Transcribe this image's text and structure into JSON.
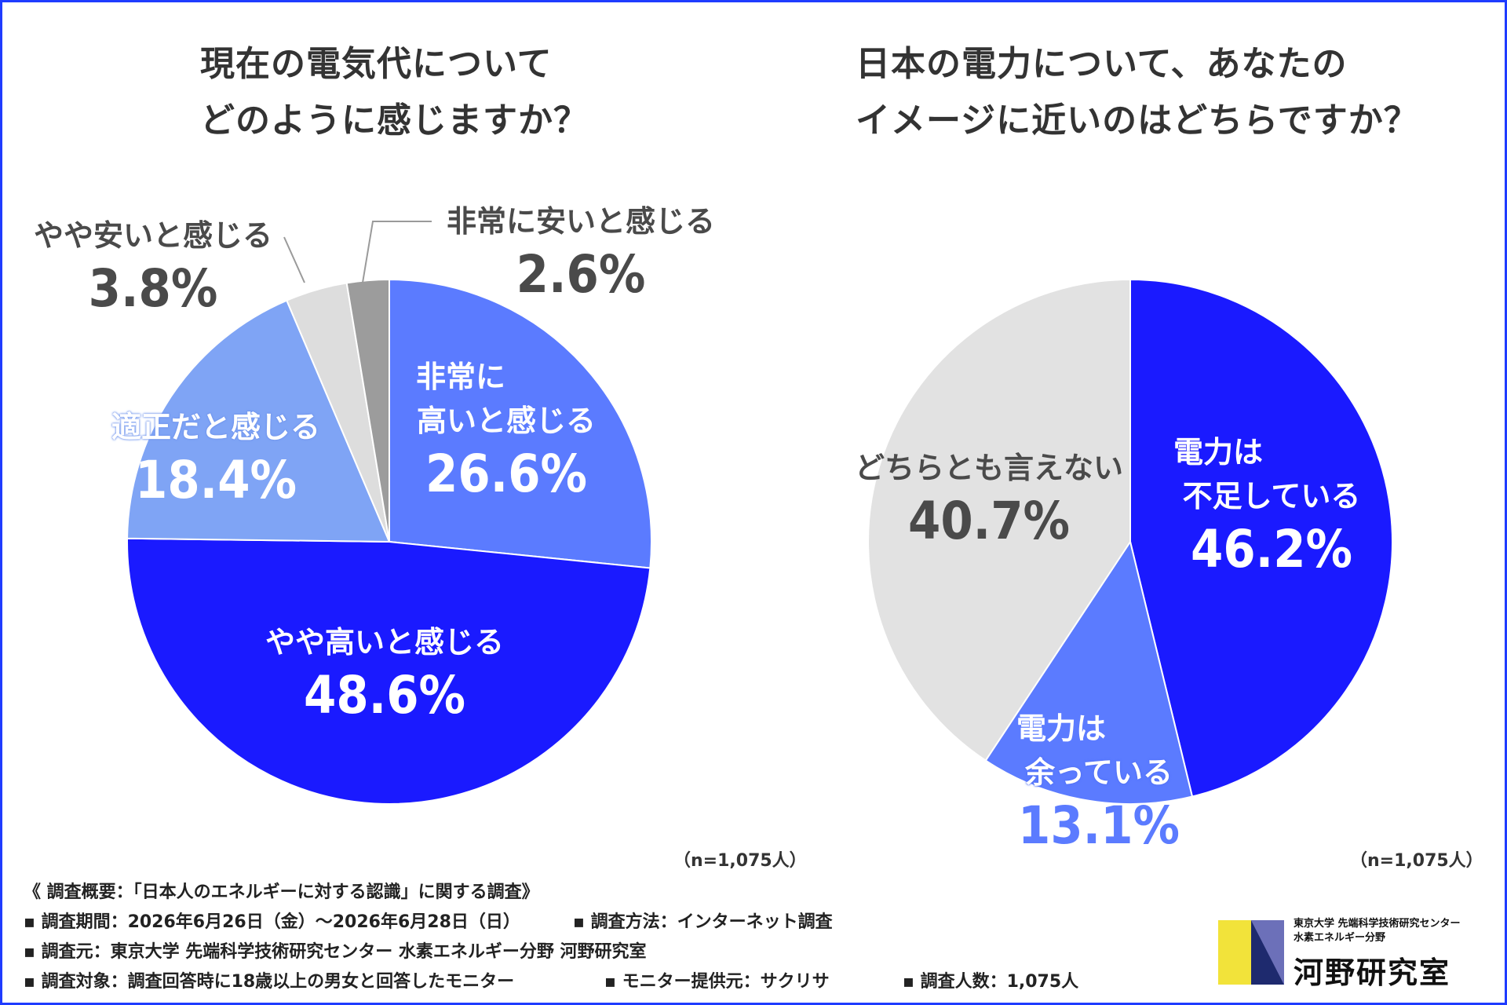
{
  "chart_data": [
    {
      "type": "pie",
      "title_lines": [
        "現在の電気代について",
        "どのように感じますか？"
      ],
      "start": "top",
      "direction": "clockwise",
      "slices": [
        {
          "label_lines": [
            "非常に",
            "高いと感じる"
          ],
          "value": 26.6,
          "value_text": "26.6%",
          "color": "#5b7bff"
        },
        {
          "label_lines": [
            "やや高いと感じる"
          ],
          "value": 48.6,
          "value_text": "48.6%",
          "color": "#1a1aff"
        },
        {
          "label_lines": [
            "適正だと感じる"
          ],
          "value": 18.4,
          "value_text": "18.4%",
          "color": "#7fa4f5"
        },
        {
          "label_lines": [
            "やや安いと感じる"
          ],
          "value": 3.8,
          "value_text": "3.8%",
          "color": "#dddddd"
        },
        {
          "label_lines": [
            "非常に安いと感じる"
          ],
          "value": 2.6,
          "value_text": "2.6%",
          "color": "#9c9c9c"
        }
      ],
      "note": "（n=1,075人）"
    },
    {
      "type": "pie",
      "title_lines": [
        "日本の電力について、あなたの",
        "イメージに近いのはどちらですか？"
      ],
      "start": "top",
      "direction": "clockwise",
      "slices": [
        {
          "label_lines": [
            "電力は",
            "不足している"
          ],
          "value": 46.2,
          "value_text": "46.2%",
          "color": "#1a1aff"
        },
        {
          "label_lines": [
            "電力は",
            "余っている"
          ],
          "value": 13.1,
          "value_text": "13.1%",
          "color": "#5b7bff"
        },
        {
          "label_lines": [
            "どちらとも言えない"
          ],
          "value": 40.7,
          "value_text": "40.7%",
          "color": "#e2e2e2"
        }
      ],
      "note": "（n=1,075人）"
    }
  ],
  "footer": {
    "summary": "《 調査概要：「日本人のエネルギーに対する認識」に関する調査》",
    "period": "▪ 調査期間：2026年6月26日（金）〜2026年6月28日（日）",
    "method": "▪ 調査方法：インターネット調査",
    "org": "▪ 調査元：東京大学 先端科学技術研究センター 水素エネルギー分野 河野研究室",
    "target": "▪ 調査対象：調査回答時に18歳以上の男女と回答したモニター",
    "provider": "▪ モニター提供元：サクリサ",
    "count": "▪ 調査人数：1,075人"
  },
  "logo": {
    "subtitle_lines": [
      "東京大学 先端科学技術研究センター",
      "水素エネルギー分野"
    ],
    "name": "河野研究室",
    "colors": {
      "yellow": "#f2e33a",
      "navy": "#1e2a6e",
      "lilac": "#b6b8e8"
    }
  }
}
